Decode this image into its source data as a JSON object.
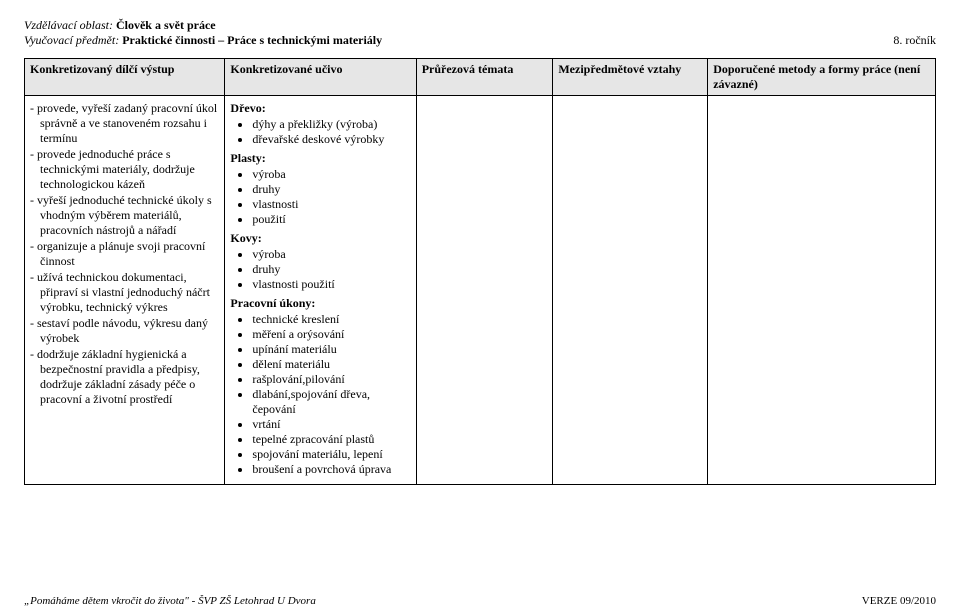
{
  "header": {
    "line1_label": "Vzdělávací oblast:",
    "line1_value": "Člověk a svět práce",
    "line2_label": "Vyučovací předmět:",
    "line2_value": "Praktické činnosti – Práce s technickými materiály",
    "right_text": "8. ročník"
  },
  "columns": {
    "c1": "Konkretizovaný dílčí výstup",
    "c2": "Konkretizované učivo",
    "c3": "Průřezová témata",
    "c4": "Mezipředmětové vztahy",
    "c5": "Doporučené metody a formy práce (není závazné)"
  },
  "col_widths": {
    "c1": "22%",
    "c2": "21%",
    "c3": "15%",
    "c4": "17%",
    "c5": "25%"
  },
  "outcomes": [
    "provede, vyřeší zadaný pracovní úkol správně a ve stanoveném rozsahu i termínu",
    "provede jednoduché práce s technickými materiály, dodržuje technologickou kázeň",
    "vyřeší jednoduché technické úkoly s vhodným výběrem materiálů, pracovních nástrojů a nářadí",
    "organizuje a plánuje svoji pracovní činnost",
    "užívá technickou dokumentaci, připraví si vlastní jednoduchý náčrt výrobku, technický výkres",
    "sestaví podle návodu, výkresu daný výrobek",
    "dodržuje základní hygienická a bezpečnostní pravidla a předpisy, dodržuje základní zásady péče o pracovní a životní prostředí"
  ],
  "ucivo": {
    "drevo_label": "Dřevo:",
    "drevo": [
      "dýhy a překližky (výroba)",
      "dřevařské deskové výrobky"
    ],
    "plasty_label": "Plasty:",
    "plasty": [
      "výroba",
      "druhy",
      "vlastnosti",
      "použití"
    ],
    "kovy_label": "Kovy:",
    "kovy": [
      "výroba",
      "druhy",
      "vlastnosti použití"
    ],
    "ukony_label": "Pracovní úkony:",
    "ukony": [
      "technické kreslení",
      "měření a orýsování",
      "upínání materiálu",
      "dělení materiálu",
      "rašplování,pilování",
      "dlabání,spojování dřeva, čepování",
      "vrtání",
      "tepelné zpracování plastů",
      "spojování materiálu, lepení",
      "broušení a povrchová úprava"
    ]
  },
  "footer": {
    "left_quote": "„Pomáháme dětem vkročit do života\"",
    "left_suffix": " - ŠVP ZŠ Letohrad U Dvora",
    "right": "VERZE 09/2010"
  }
}
